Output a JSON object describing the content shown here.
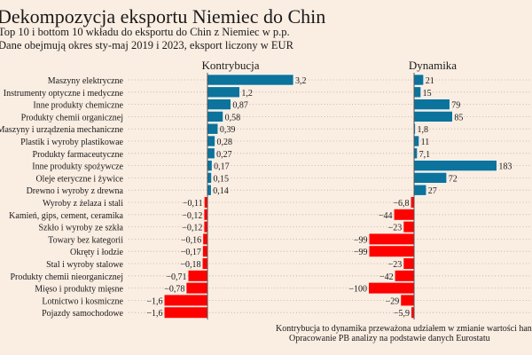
{
  "title": "Dekompozycja eksportu Niemiec do Chin",
  "subtitle1": "Top 10 i bottom 10 wkładu do eksportu do Chin z Niemiec w p.p.",
  "subtitle2": "Dane obejmują okres sty-maj 2019 i 2023, eksport liczony w EUR",
  "footnote1": "Kontrybucja to dynamika przeważona udziałem w zmianie wartości handlu",
  "footnote2": "Opracowanie PB analizy na podstawie danych Eurostatu",
  "colors": {
    "positive": "#0b739c",
    "negative": "#ff0000",
    "background": "#faede2"
  },
  "chart_data": [
    {
      "type": "bar",
      "orientation": "horizontal",
      "title": "Kontrybucja",
      "categories": [
        "Maszyny elektryczne",
        "Instrumenty optyczne i medyczne",
        "Inne produkty chemiczne",
        "Produkty chemii organicznej",
        "Maszyny i urządzenia mechaniczne",
        "Plastik i wyroby plastikowae",
        "Produkty farmaceutyczne",
        "Inne produkty spożywcze",
        "Oleje eteryczne i żywice",
        "Drewno i wyroby z drewna",
        "Wyroby z żelaza i stali",
        "Kamień, gips, cement, ceramika",
        "Szkło i wyroby ze szkła",
        "Towary bez kategorii",
        "Okręty i łodzie",
        "Stal i wyroby stalowe",
        "Produkty chemii nieorganicznej",
        "Mięso i produkty mięsne",
        "Lotnictwo i kosmiczne",
        "Pojazdy samochodowe"
      ],
      "values": [
        3.2,
        1.2,
        0.87,
        0.58,
        0.39,
        0.28,
        0.27,
        0.17,
        0.15,
        0.14,
        -0.11,
        -0.12,
        -0.12,
        -0.16,
        -0.17,
        -0.18,
        -0.71,
        -0.78,
        -1.6,
        -1.6
      ],
      "labels": [
        "3,2",
        "1,2",
        "0,87",
        "0,58",
        "0,39",
        "0,28",
        "0,27",
        "0,17",
        "0,15",
        "0,14",
        "−0,11",
        "−0,12",
        "−0,12",
        "−0,16",
        "−0,17",
        "−0,18",
        "−0,71",
        "−0,78",
        "−1,6",
        "−1,6"
      ]
    },
    {
      "type": "bar",
      "orientation": "horizontal",
      "title": "Dynamika",
      "values": [
        21,
        15,
        79,
        85,
        1.8,
        11,
        7.1,
        183,
        72,
        27,
        -6.8,
        -44,
        -23,
        -99,
        -99,
        -23,
        -42,
        -100,
        -29,
        -5.9
      ],
      "labels": [
        "21",
        "15",
        "79",
        "85",
        "1,8",
        "11",
        "7,1",
        "183",
        "72",
        "27",
        "−6,8",
        "−44",
        "−23",
        "−99",
        "−99",
        "−23",
        "−42",
        "−100",
        "−29",
        "−5,9"
      ]
    }
  ]
}
